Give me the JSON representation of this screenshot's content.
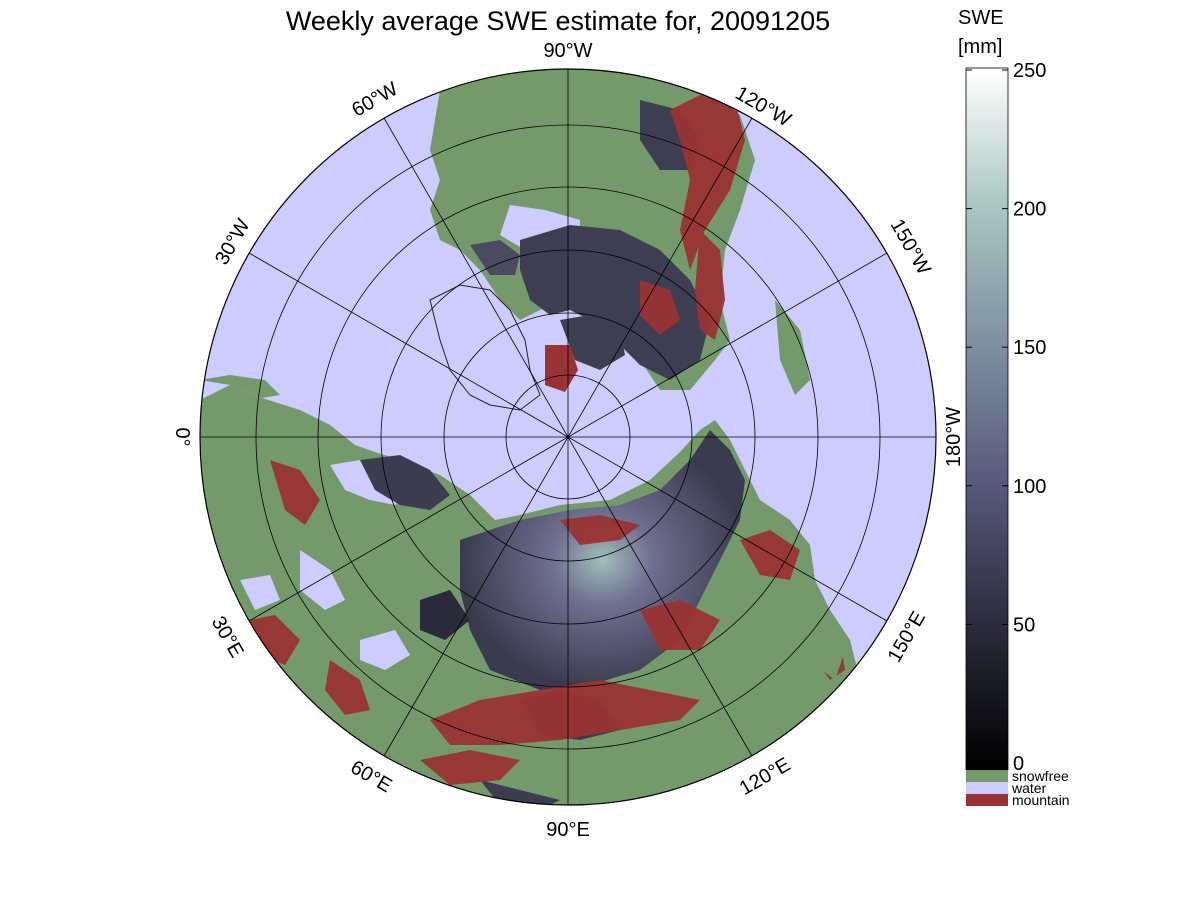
{
  "title": "Weekly average SWE estimate for, 20091205",
  "colorbar": {
    "title_line1": "SWE",
    "title_line2": "[mm]",
    "ticks": [
      "0",
      "50",
      "100",
      "150",
      "200",
      "250"
    ],
    "range": [
      0,
      250
    ]
  },
  "longitude_labels": {
    "w90": "90°W",
    "w120": "120°W",
    "w150": "150°W",
    "w180": "180°W",
    "e150": "150°E",
    "e120": "120°E",
    "e90": "90°E",
    "e60": "60°E",
    "e30": "30°E",
    "zero": "0°",
    "w30": "30°W",
    "w60": "60°W"
  },
  "legend": [
    {
      "label": "snowfree",
      "color": "#749a6c"
    },
    {
      "label": "water",
      "color": "#ccccff"
    },
    {
      "label": "mountain",
      "color": "#993333"
    }
  ],
  "colors": {
    "ocean": "#ccccff",
    "land": "#749a6c",
    "mountain": "#993333",
    "snow_low": "#3c3c50",
    "snow_high": "#a7c7bf"
  }
}
